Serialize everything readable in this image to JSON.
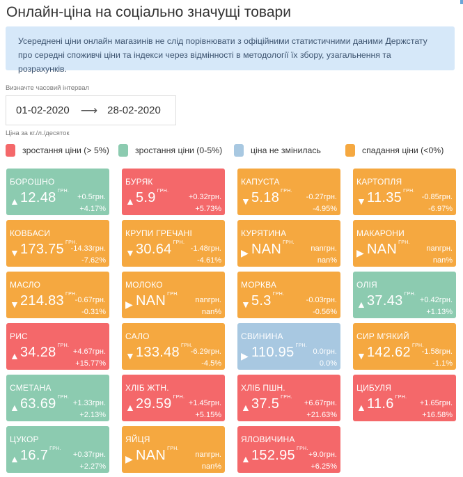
{
  "header": {
    "title": "Онлайн-ціна на соціально значущі товари"
  },
  "info_banner": {
    "text": "Усереднені ціни онлайн магазинів не слід порівнювати з офіційними статистичними даними Держстату про середні споживчі ціни та індекси через відмінності в методології їх збору, узагальнення та розрахунків."
  },
  "date_filter": {
    "label": "Визначте часовий інтервал",
    "start": "01-02-2020",
    "arrow": "⟶",
    "end": "28-02-2020"
  },
  "unit_note": "Ціна за кг./л./десяток",
  "legend": [
    {
      "label": "зростання ціни (> 5%)",
      "color": "#f4686a"
    },
    {
      "label": "зростання ціни (0-5%)",
      "color": "#8ccbb0"
    },
    {
      "label": "ціна не змінилась",
      "color": "#a8c8e1"
    },
    {
      "label": "спадання ціни (<0%)",
      "color": "#f5a840"
    }
  ],
  "currency_unit": "ГРН.",
  "products": [
    {
      "name": "БОРОШНО",
      "price": "12.48",
      "change_abs": "+0.5грн.",
      "change_pct": "+4.17%",
      "trend": "up",
      "arrow": "▲",
      "color": "green"
    },
    {
      "name": "БУРЯК",
      "price": "5.9",
      "change_abs": "+0.32грн.",
      "change_pct": "+5.73%",
      "trend": "up",
      "arrow": "▲",
      "color": "red"
    },
    {
      "name": "КАПУСТА",
      "price": "5.18",
      "change_abs": "-0.27грн.",
      "change_pct": "-4.95%",
      "trend": "down",
      "arrow": "▼",
      "color": "orange"
    },
    {
      "name": "КАРТОПЛЯ",
      "price": "11.35",
      "change_abs": "-0.85грн.",
      "change_pct": "-6.97%",
      "trend": "down",
      "arrow": "▼",
      "color": "orange"
    },
    {
      "name": "КОВБАСИ",
      "price": "173.75",
      "change_abs": "-14.33грн.",
      "change_pct": "-7.62%",
      "trend": "down",
      "arrow": "▼",
      "color": "orange"
    },
    {
      "name": "КРУПИ ГРЕЧАНІ",
      "price": "30.64",
      "change_abs": "-1.48грн.",
      "change_pct": "-4.61%",
      "trend": "down",
      "arrow": "▼",
      "color": "orange"
    },
    {
      "name": "КУРЯТИНА",
      "price": "NAN",
      "change_abs": "nanгрн.",
      "change_pct": "nan%",
      "trend": "none",
      "arrow": "▶",
      "color": "orange"
    },
    {
      "name": "МАКАРОНИ",
      "price": "NAN",
      "change_abs": "nanгрн.",
      "change_pct": "nan%",
      "trend": "none",
      "arrow": "▶",
      "color": "orange"
    },
    {
      "name": "МАСЛО",
      "price": "214.83",
      "change_abs": "-0.67грн.",
      "change_pct": "-0.31%",
      "trend": "down",
      "arrow": "▼",
      "color": "orange"
    },
    {
      "name": "МОЛОКО",
      "price": "NAN",
      "change_abs": "nanгрн.",
      "change_pct": "nan%",
      "trend": "none",
      "arrow": "▶",
      "color": "orange"
    },
    {
      "name": "МОРКВА",
      "price": "5.3",
      "change_abs": "-0.03грн.",
      "change_pct": "-0.56%",
      "trend": "down",
      "arrow": "▼",
      "color": "orange"
    },
    {
      "name": "ОЛІЯ",
      "price": "37.43",
      "change_abs": "+0.42грн.",
      "change_pct": "+1.13%",
      "trend": "up",
      "arrow": "▲",
      "color": "green"
    },
    {
      "name": "РИС",
      "price": "34.28",
      "change_abs": "+4.67грн.",
      "change_pct": "+15.77%",
      "trend": "up",
      "arrow": "▲",
      "color": "red"
    },
    {
      "name": "САЛО",
      "price": "133.48",
      "change_abs": "-6.29грн.",
      "change_pct": "-4.5%",
      "trend": "down",
      "arrow": "▼",
      "color": "orange"
    },
    {
      "name": "СВИНИНА",
      "price": "110.95",
      "change_abs": "0.0грн.",
      "change_pct": "0.0%",
      "trend": "none",
      "arrow": "▶",
      "color": "blue"
    },
    {
      "name": "СИР М'ЯКИЙ",
      "price": "142.62",
      "change_abs": "-1.58грн.",
      "change_pct": "-1.1%",
      "trend": "down",
      "arrow": "▼",
      "color": "orange"
    },
    {
      "name": "СМЕТАНА",
      "price": "63.69",
      "change_abs": "+1.33грн.",
      "change_pct": "+2.13%",
      "trend": "up",
      "arrow": "▲",
      "color": "green"
    },
    {
      "name": "ХЛІБ ЖТН.",
      "price": "29.59",
      "change_abs": "+1.45грн.",
      "change_pct": "+5.15%",
      "trend": "up",
      "arrow": "▲",
      "color": "red"
    },
    {
      "name": "ХЛІБ ПШН.",
      "price": "37.5",
      "change_abs": "+6.67грн.",
      "change_pct": "+21.63%",
      "trend": "up",
      "arrow": "▲",
      "color": "red"
    },
    {
      "name": "ЦИБУЛЯ",
      "price": "11.6",
      "change_abs": "+1.65грн.",
      "change_pct": "+16.58%",
      "trend": "up",
      "arrow": "▲",
      "color": "red"
    },
    {
      "name": "ЦУКОР",
      "price": "16.7",
      "change_abs": "+0.37грн.",
      "change_pct": "+2.27%",
      "trend": "up",
      "arrow": "▲",
      "color": "green"
    },
    {
      "name": "ЯЙЦЯ",
      "price": "NAN",
      "change_abs": "nanгрн.",
      "change_pct": "nan%",
      "trend": "none",
      "arrow": "▶",
      "color": "orange"
    },
    {
      "name": "ЯЛОВИЧИНА",
      "price": "152.95",
      "change_abs": "+9.0грн.",
      "change_pct": "+6.25%",
      "trend": "up",
      "arrow": "▲",
      "color": "red"
    }
  ]
}
